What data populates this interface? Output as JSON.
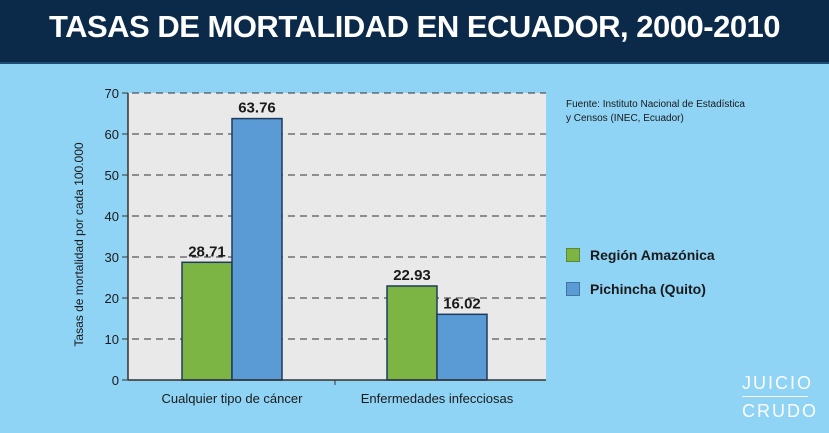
{
  "header": {
    "title": "TASAS DE MORTALIDAD EN ECUADOR, 2000-2010"
  },
  "source_note": {
    "line1": "Fuente: Instituto Nacional de Estadística",
    "line2": "y Censos (INEC, Ecuador)"
  },
  "logo": {
    "top": "JUICIO",
    "bottom": "CRUDO"
  },
  "colors": {
    "background": "#8fd3f5",
    "header": "#0b2a4a",
    "plot_bg": "#e9e9e9",
    "amazonica": "#7db545",
    "pichincha": "#5b9bd5"
  },
  "chart_data": {
    "type": "bar",
    "title": "TASAS DE MORTALIDAD EN ECUADOR, 2000-2010",
    "categories": [
      "Cualquier tipo de cáncer",
      "Enfermedades infecciosas"
    ],
    "series": [
      {
        "name": "Región Amazónica",
        "values": [
          28.71,
          22.93
        ],
        "labels": [
          "28.71",
          "22.93"
        ],
        "color": "#7db545"
      },
      {
        "name": "Pichincha (Quito)",
        "values": [
          63.76,
          16.02
        ],
        "labels": [
          "63.76",
          "16.02"
        ],
        "color": "#5b9bd5"
      }
    ],
    "xlabel": "",
    "ylabel": "Tasas de mortalidad por cada 100.000",
    "ylim": [
      0,
      70
    ],
    "yticks": [
      0,
      10,
      20,
      30,
      40,
      50,
      60,
      70
    ],
    "ytick_labels": [
      "0",
      "10",
      "20",
      "30",
      "40",
      "50",
      "60",
      "70"
    ],
    "grid": true,
    "legend_position": "right"
  }
}
